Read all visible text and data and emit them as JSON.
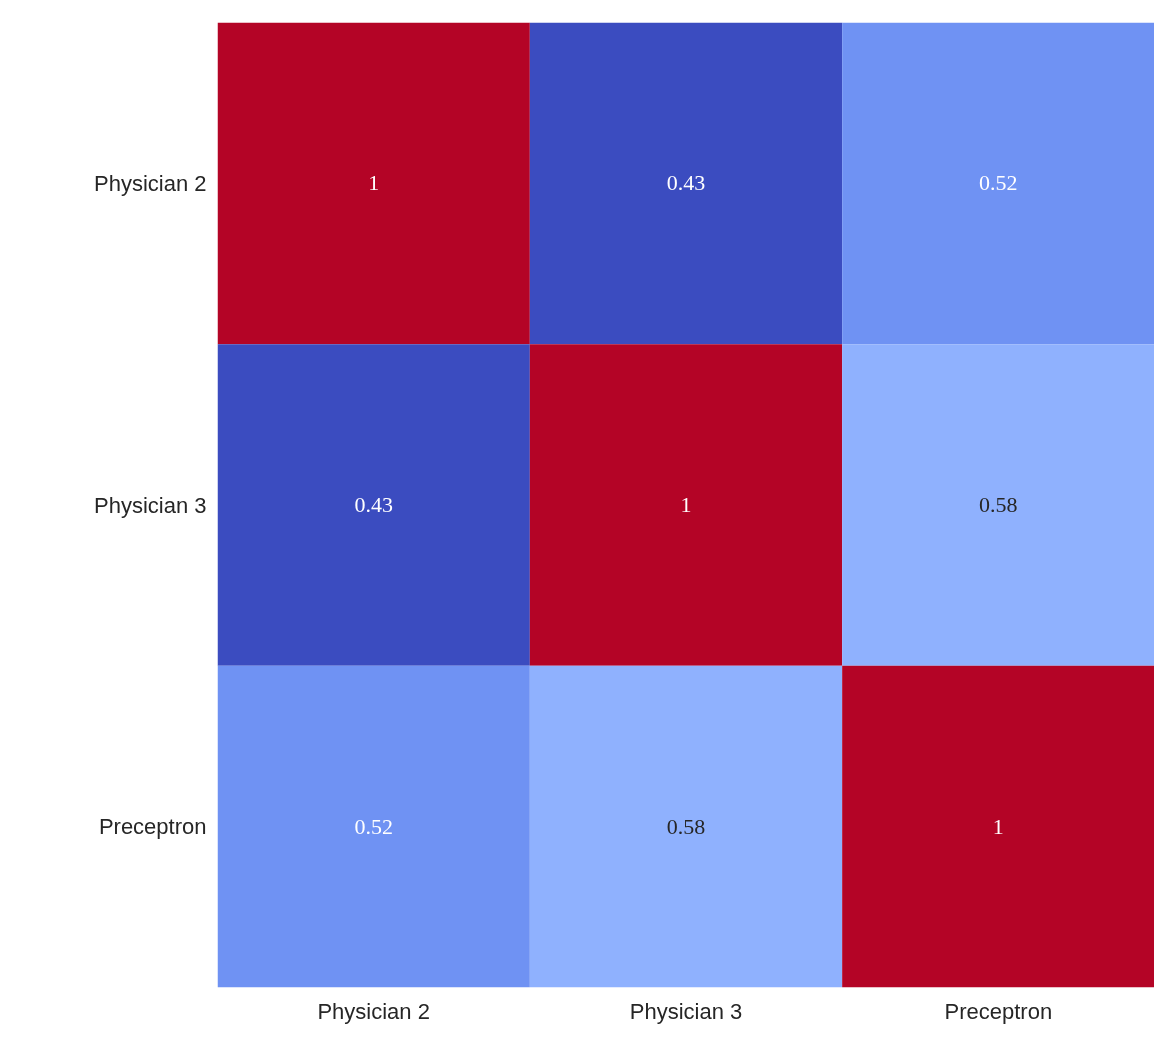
{
  "chart_data": {
    "type": "heatmap",
    "categories": [
      "Physician 2",
      "Physician 3",
      "Preceptron"
    ],
    "y_categories": [
      "Physician 2",
      "Physician 3",
      "Preceptron"
    ],
    "cells": [
      [
        1,
        0.43,
        0.52
      ],
      [
        0.43,
        1,
        0.58
      ],
      [
        0.52,
        0.58,
        1
      ]
    ],
    "colors": [
      [
        "#b40426",
        "#3b4cc0",
        "#6f92f3"
      ],
      [
        "#3b4cc0",
        "#b40426",
        "#8fb1fe"
      ],
      [
        "#6f92f3",
        "#8fb1fe",
        "#b40426"
      ]
    ],
    "data_labels": true
  }
}
